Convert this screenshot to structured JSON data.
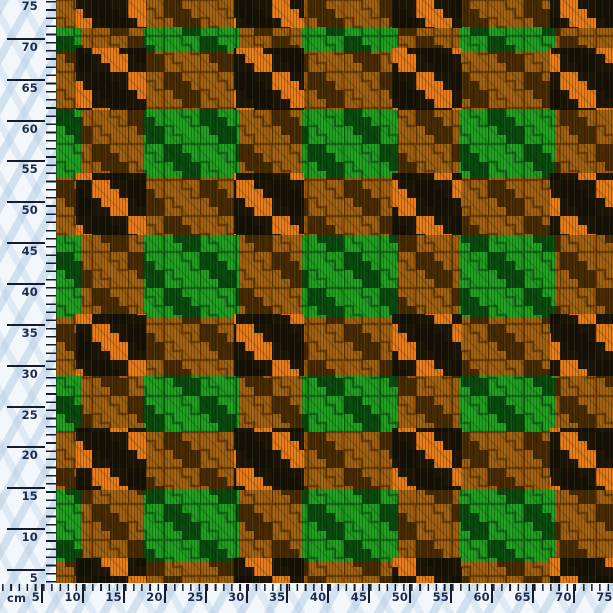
{
  "ruler": {
    "unit": "cm",
    "left_labels": [
      "75",
      "70",
      "65",
      "60",
      "55",
      "50",
      "45",
      "40",
      "35",
      "30",
      "25",
      "20",
      "15",
      "10",
      "5"
    ],
    "bottom_labels": [
      "5",
      "10",
      "15",
      "20",
      "25",
      "30",
      "35",
      "40",
      "45",
      "50",
      "55",
      "60",
      "65",
      "70",
      "75"
    ]
  },
  "fabric": {
    "pattern": "houndstooth",
    "texture": "corduroy"
  },
  "colors": {
    "ruler_bg": "#f2f7fb",
    "ruler_stripe": "#cfe0ee",
    "ruler_text": "#1d2c4e",
    "tick": "#141c2e",
    "fabric_bright_green": "#20a120",
    "fabric_dark_green": "#094a0d",
    "fabric_ghost": "#05380a",
    "fabric_band": "#b85c12",
    "fabric_orange": "#ef7c17",
    "fabric_black": "#140d05"
  }
}
